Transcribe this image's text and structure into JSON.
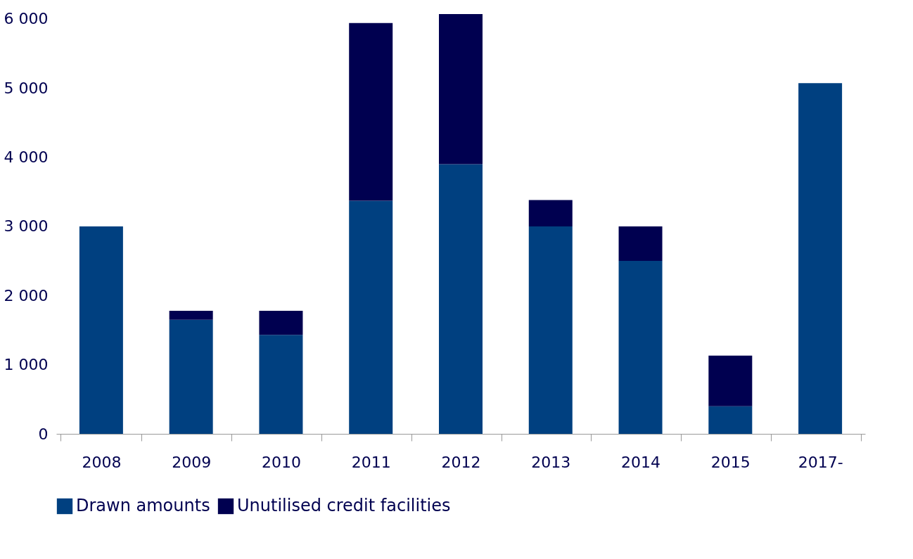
{
  "chart_data": {
    "type": "bar",
    "stacked": true,
    "categories": [
      "2008",
      "2009",
      "2010",
      "2011",
      "2012",
      "2013",
      "2014",
      "2015",
      "2017-"
    ],
    "series": [
      {
        "name": "Drawn amounts",
        "color": "#004080",
        "values": [
          3000,
          1650,
          1430,
          3370,
          3900,
          3000,
          2500,
          400,
          5070
        ]
      },
      {
        "name": "Unutilised credit facilities",
        "color": "#000050",
        "values": [
          0,
          130,
          350,
          2570,
          2170,
          380,
          500,
          730,
          0
        ]
      }
    ],
    "ylim": [
      0,
      6100
    ],
    "yticks": [
      {
        "value": 0,
        "label": "0"
      },
      {
        "value": 1000,
        "label": "1 000"
      },
      {
        "value": 2000,
        "label": "2 000"
      },
      {
        "value": 3000,
        "label": "3 000"
      },
      {
        "value": 4000,
        "label": "4 000"
      },
      {
        "value": 5000,
        "label": "5 000"
      },
      {
        "value": 6000,
        "label": "6 000"
      }
    ],
    "grid": false,
    "legend": "bottom"
  }
}
